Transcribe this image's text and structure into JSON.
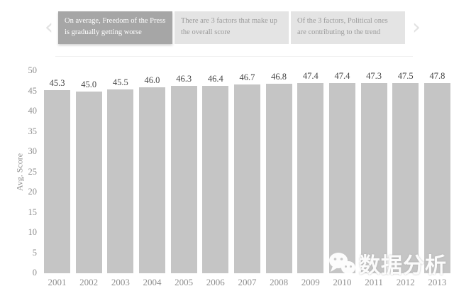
{
  "carousel": {
    "prev_icon": "‹",
    "next_icon": "›",
    "slides": [
      {
        "text": "On average, Freedom of the Press is gradually getting worse",
        "active": true
      },
      {
        "text": "There are 3 factors that make up the overall score",
        "active": false
      },
      {
        "text": "Of the 3 factors, Political ones are contributing to the trend",
        "active": false
      }
    ],
    "active_bg": "#a6a6a6",
    "inactive_bg": "#e4e4e4"
  },
  "chart_data": {
    "type": "bar",
    "categories": [
      "2001",
      "2002",
      "2003",
      "2004",
      "2005",
      "2006",
      "2007",
      "2008",
      "2009",
      "2010",
      "2011",
      "2012",
      "2013"
    ],
    "values": [
      45.3,
      45.0,
      45.5,
      46.0,
      46.3,
      46.4,
      46.7,
      46.8,
      47.4,
      47.4,
      47.3,
      47.5,
      47.8
    ],
    "value_labels": [
      "45.3",
      "45.0",
      "45.5",
      "46.0",
      "46.3",
      "46.4",
      "46.7",
      "46.8",
      "47.4",
      "47.4",
      "47.3",
      "47.5",
      "47.8"
    ],
    "title": "",
    "xlabel": "",
    "ylabel": "Avg. Score",
    "ylim": [
      0,
      50
    ],
    "yticks": [
      0,
      5,
      10,
      15,
      20,
      25,
      30,
      35,
      40,
      45,
      50
    ],
    "grid": false,
    "legend": false,
    "bar_color": "#c5c5c5",
    "value_label_color": "#454545",
    "axis_label_color": "#8f8f8f"
  },
  "watermark": {
    "text": "数据分析",
    "icon": "wechat-logo"
  }
}
